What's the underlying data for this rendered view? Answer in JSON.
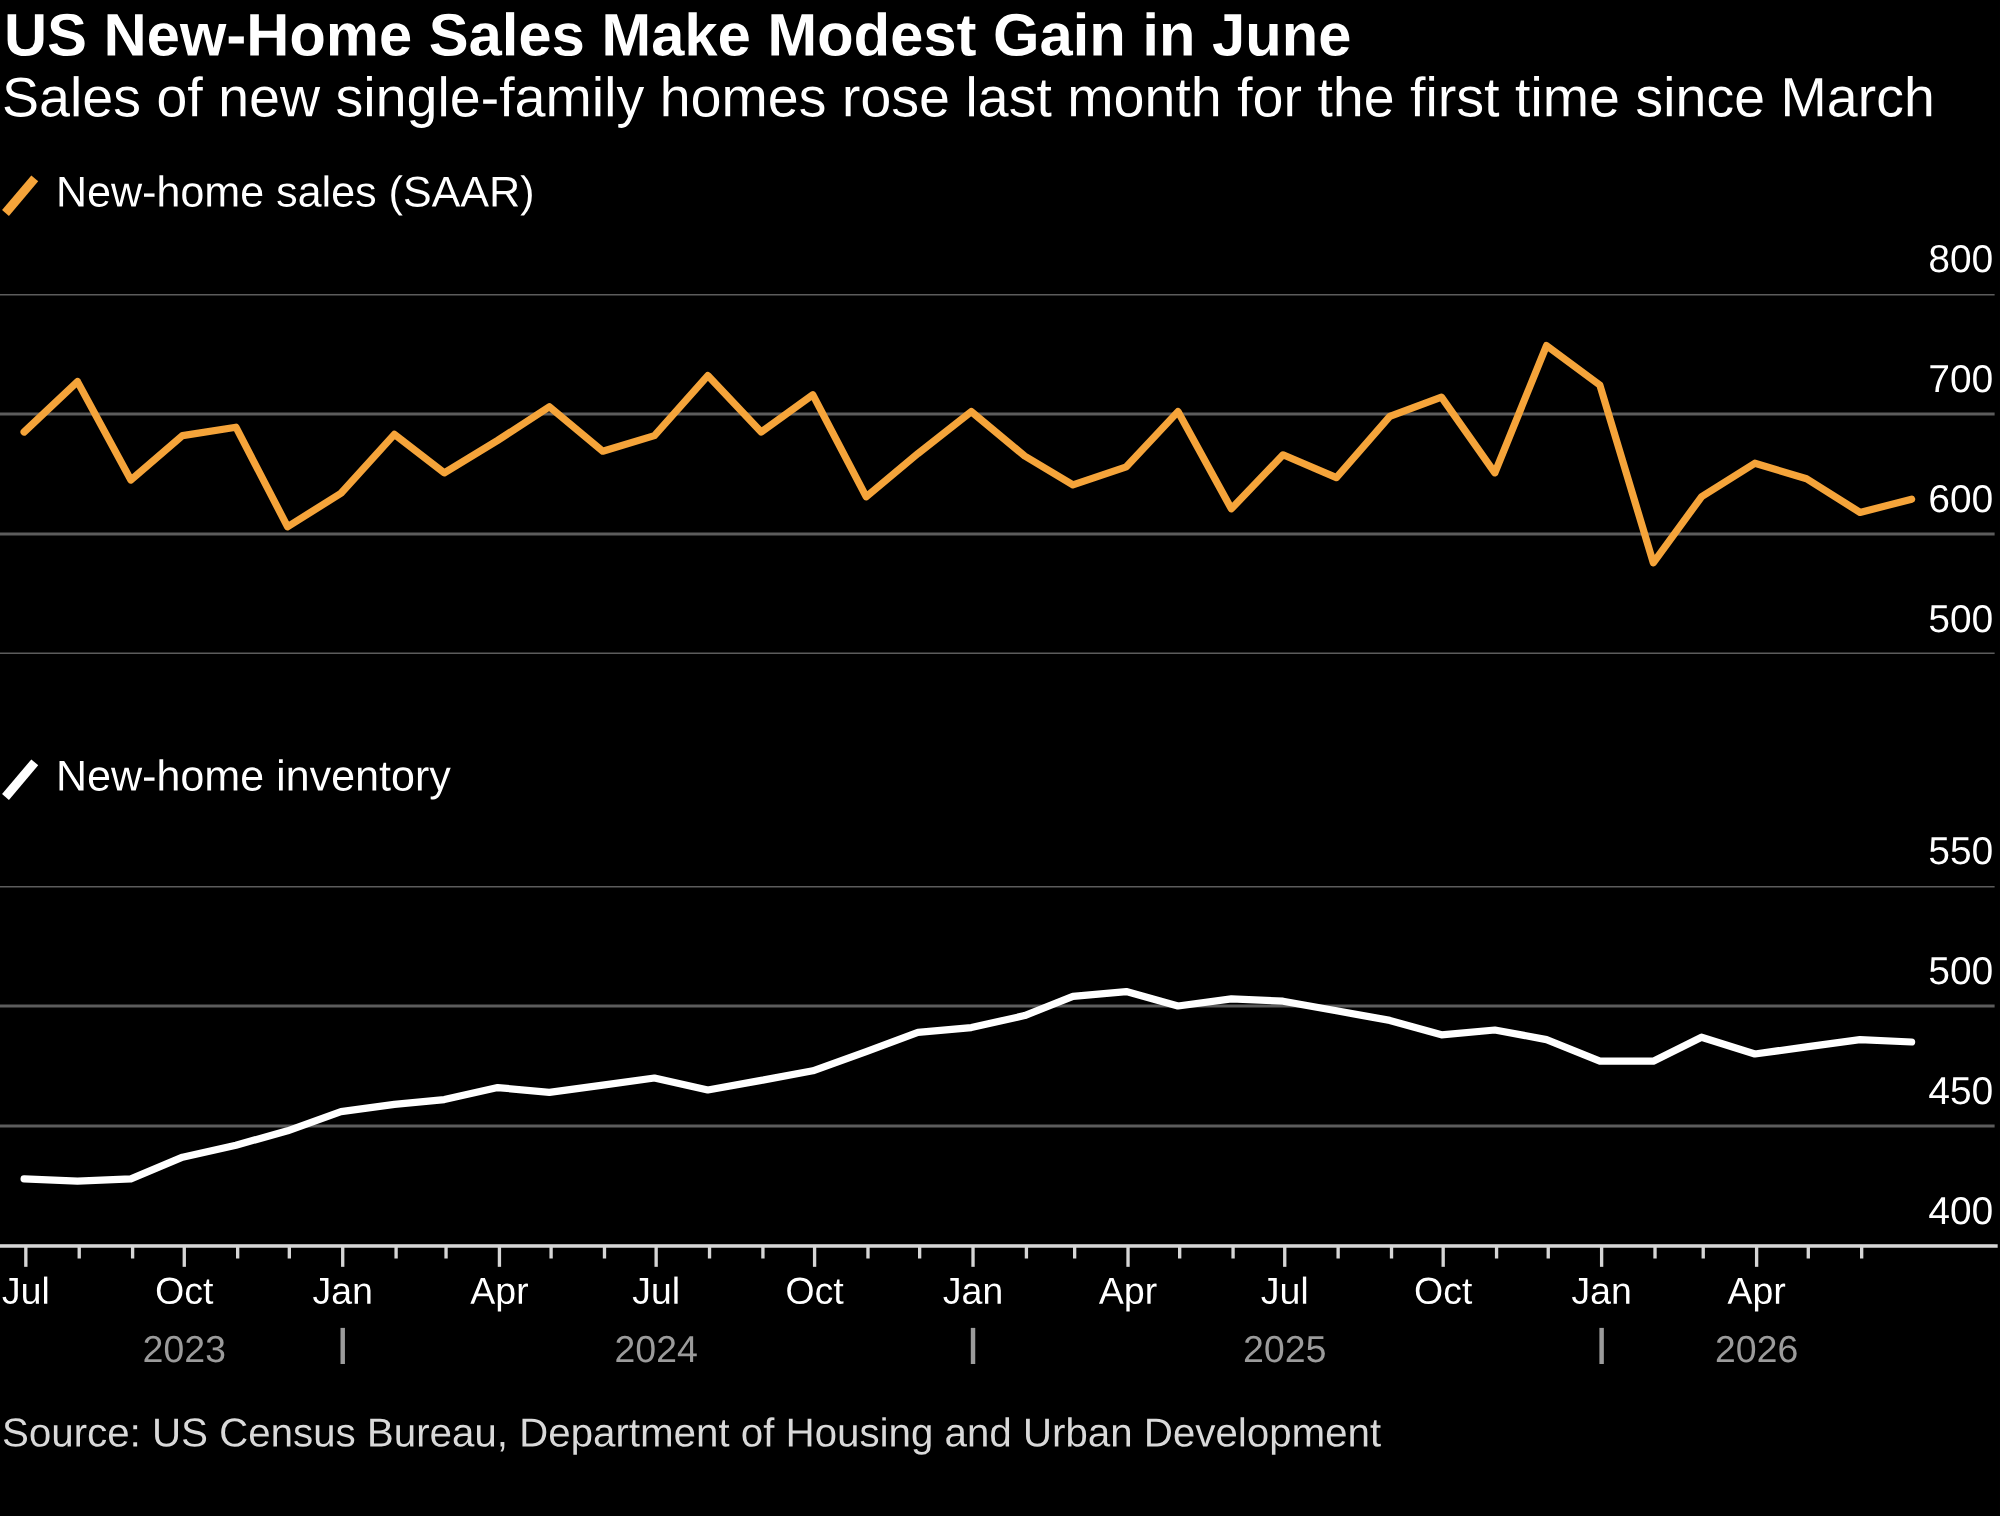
{
  "chart_data": [
    {
      "type": "line",
      "title": "US New-Home Sales Make Modest Gain in June",
      "subtitle": "Sales of new single-family homes rose last month for the first time since March",
      "x": [
        "2023-06-30",
        "2023-07-31",
        "2023-08-31",
        "2023-09-30",
        "2023-10-31",
        "2023-11-30",
        "2023-12-31",
        "2024-01-31",
        "2024-02-29",
        "2024-03-31",
        "2024-04-30",
        "2024-05-31",
        "2024-06-30",
        "2024-07-31",
        "2024-08-31",
        "2024-09-30",
        "2024-10-31",
        "2024-11-30",
        "2024-12-31",
        "2025-01-31",
        "2025-02-28",
        "2025-03-31",
        "2025-04-30",
        "2025-05-31",
        "2025-06-30",
        "2025-07-31",
        "2025-08-31",
        "2025-09-30",
        "2025-10-31",
        "2025-11-30",
        "2025-12-31",
        "2026-01-31",
        "2026-02-28",
        "2026-03-31",
        "2026-04-30",
        "2026-05-31",
        "2026-06-30"
      ],
      "series": [
        {
          "name": "New-home sales (SAAR)",
          "color": "#f5a43a",
          "values": [
            685,
            727,
            645,
            682,
            689,
            606,
            634,
            683,
            651,
            678,
            706,
            669,
            682,
            732,
            685,
            716,
            631,
            667,
            702,
            665,
            641,
            656,
            702,
            621,
            666,
            647,
            698,
            714,
            651,
            757,
            724,
            576,
            631,
            659,
            646,
            618,
            629
          ]
        }
      ],
      "xlim": [
        "2023-06-16",
        "2026-08-18"
      ],
      "ylim": [
        500,
        800
      ],
      "yticks": [
        500,
        600,
        700,
        800
      ],
      "grid": "y",
      "legend": "top left",
      "tick_labels": "y"
    },
    {
      "type": "line",
      "x": [
        "2023-06-30",
        "2023-07-31",
        "2023-08-31",
        "2023-09-30",
        "2023-10-31",
        "2023-11-30",
        "2023-12-31",
        "2024-01-31",
        "2024-02-29",
        "2024-03-31",
        "2024-04-30",
        "2024-05-31",
        "2024-06-30",
        "2024-07-31",
        "2024-08-31",
        "2024-09-30",
        "2024-10-31",
        "2024-11-30",
        "2024-12-31",
        "2025-01-31",
        "2025-02-28",
        "2025-03-31",
        "2025-04-30",
        "2025-05-31",
        "2025-06-30",
        "2025-07-31",
        "2025-08-31",
        "2025-09-30",
        "2025-10-31",
        "2025-11-30",
        "2025-12-31",
        "2026-01-31",
        "2026-02-28",
        "2026-03-31",
        "2026-04-30",
        "2026-05-31",
        "2026-06-30"
      ],
      "series": [
        {
          "name": "New-home inventory",
          "color": "#ffffff",
          "values": [
            428,
            427,
            428,
            437,
            442,
            448,
            456,
            459,
            461,
            466,
            464,
            467,
            470,
            465,
            469,
            473,
            481,
            489,
            491,
            496,
            504,
            506,
            500,
            503,
            502,
            498,
            494,
            488,
            490,
            486,
            477,
            477,
            487,
            480,
            483,
            486,
            485
          ]
        }
      ],
      "xlim": [
        "2023-06-16",
        "2026-08-18"
      ],
      "xticks": [
        {
          "value": "2023-07-01",
          "label": "Jul"
        },
        {
          "value": "2023-08-01",
          "label": null
        },
        {
          "value": "2023-09-01",
          "label": null
        },
        {
          "value": "2023-10-01",
          "label": "Oct"
        },
        {
          "value": "2023-11-01",
          "label": null
        },
        {
          "value": "2023-12-01",
          "label": null
        },
        {
          "value": "2024-01-01",
          "label": "Jan"
        },
        {
          "value": "2024-02-01",
          "label": null
        },
        {
          "value": "2024-03-01",
          "label": null
        },
        {
          "value": "2024-04-01",
          "label": "Apr"
        },
        {
          "value": "2024-05-01",
          "label": null
        },
        {
          "value": "2024-06-01",
          "label": null
        },
        {
          "value": "2024-07-01",
          "label": "Jul"
        },
        {
          "value": "2024-08-01",
          "label": null
        },
        {
          "value": "2024-09-01",
          "label": null
        },
        {
          "value": "2024-10-01",
          "label": "Oct"
        },
        {
          "value": "2024-11-01",
          "label": null
        },
        {
          "value": "2024-12-01",
          "label": null
        },
        {
          "value": "2025-01-01",
          "label": "Jan"
        },
        {
          "value": "2025-02-01",
          "label": null
        },
        {
          "value": "2025-03-01",
          "label": null
        },
        {
          "value": "2025-04-01",
          "label": "Apr"
        },
        {
          "value": "2025-05-01",
          "label": null
        },
        {
          "value": "2025-06-01",
          "label": null
        },
        {
          "value": "2025-07-01",
          "label": "Jul"
        },
        {
          "value": "2025-08-01",
          "label": null
        },
        {
          "value": "2025-09-01",
          "label": null
        },
        {
          "value": "2025-10-01",
          "label": "Oct"
        },
        {
          "value": "2025-11-01",
          "label": null
        },
        {
          "value": "2025-12-01",
          "label": null
        },
        {
          "value": "2026-01-01",
          "label": "Jan"
        },
        {
          "value": "2026-02-01",
          "label": null
        },
        {
          "value": "2026-03-01",
          "label": null
        },
        {
          "value": "2026-04-01",
          "label": "Apr"
        },
        {
          "value": "2026-05-01",
          "label": null
        },
        {
          "value": "2026-06-01",
          "label": null
        }
      ],
      "x2lim": [
        "2023-06-16",
        "2026-08-18"
      ],
      "x2ticks": [
        {
          "value": "2023-10-01",
          "label": "2023"
        },
        {
          "value": "2024-01-01",
          "label": null
        },
        {
          "value": "2024-07-01",
          "label": "2024"
        },
        {
          "value": "2025-01-01",
          "label": null
        },
        {
          "value": "2025-07-01",
          "label": "2025"
        },
        {
          "value": "2026-01-01",
          "label": null
        },
        {
          "value": "2026-04-01",
          "label": "2026"
        }
      ],
      "ylim": [
        400,
        550
      ],
      "yticks": [
        400,
        450,
        500,
        550
      ],
      "grid": "y",
      "legend": "top left",
      "annotations": [
        "Source: US Census Bureau, Department of Housing and Urban Development"
      ]
    }
  ]
}
